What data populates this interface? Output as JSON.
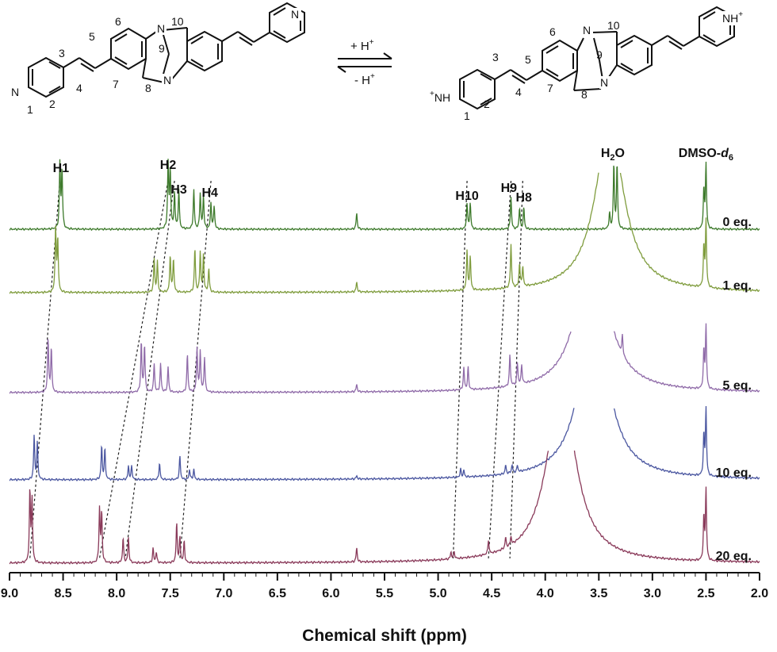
{
  "scheme": {
    "left_molecule": {
      "atom_numbers": [
        "1",
        "2",
        "3",
        "4",
        "5",
        "6",
        "7",
        "8",
        "9",
        "10"
      ],
      "n_label": "N"
    },
    "right_molecule": {
      "atom_numbers": [
        "1",
        "2",
        "3",
        "4",
        "5",
        "6",
        "7",
        "8",
        "9",
        "10"
      ],
      "n_label": "N",
      "nh_plus_label": "NH",
      "plus_sign": "+"
    },
    "forward_label": "+ H",
    "reverse_label": "- H",
    "superscript": "+"
  },
  "chart_data": {
    "type": "stacked-spectra",
    "xlabel": "Chemical shift (ppm)",
    "xlim": [
      9.0,
      2.0
    ],
    "x_reversed": true,
    "x_ticks": [
      "9.0",
      "8.5",
      "8.0",
      "7.5",
      "7.0",
      "6.5",
      "6.0",
      "5.5",
      "5.0",
      "4.5",
      "4.0",
      "3.5",
      "3.0",
      "2.5",
      "2.0"
    ],
    "top_labels": [
      {
        "text": "H1",
        "ppm": 8.52
      },
      {
        "text": "H2",
        "ppm": 7.52
      },
      {
        "text": "H3",
        "ppm": 7.42
      },
      {
        "text": "H4",
        "ppm": 7.13
      },
      {
        "text": "H10",
        "ppm": 4.73
      },
      {
        "text": "H9",
        "ppm": 4.34
      },
      {
        "text": "H8",
        "ppm": 4.2
      },
      {
        "text": "H2O",
        "ppm": 3.37
      },
      {
        "text": "DMSO-d6",
        "ppm": 2.5
      }
    ],
    "water_label": {
      "main": "H",
      "sub": "2",
      "tail": "O"
    },
    "solvent_label": {
      "main": "DMSO-",
      "italic": "d",
      "sub": "6"
    },
    "series": [
      {
        "name": "0 eq.",
        "color": "#3d7a2b",
        "peaks": [
          [
            8.53,
            1.0
          ],
          [
            8.51,
            0.9
          ],
          [
            7.52,
            1.0
          ],
          [
            7.5,
            0.9
          ],
          [
            7.46,
            0.55
          ],
          [
            7.42,
            0.6
          ],
          [
            7.28,
            0.6
          ],
          [
            7.22,
            0.55
          ],
          [
            7.19,
            0.5
          ],
          [
            7.12,
            0.4
          ],
          [
            7.09,
            0.35
          ],
          [
            5.76,
            0.25
          ],
          [
            4.73,
            0.4
          ],
          [
            4.7,
            0.4
          ],
          [
            4.32,
            0.5
          ],
          [
            4.24,
            0.33
          ],
          [
            4.2,
            0.33
          ],
          [
            3.36,
            1.0
          ],
          [
            3.33,
            1.0
          ],
          [
            3.4,
            0.25
          ],
          [
            2.5,
            1.0
          ],
          [
            2.52,
            0.6
          ]
        ]
      },
      {
        "name": "1 eq.",
        "color": "#7f9c3d",
        "peaks": [
          [
            8.57,
            0.95
          ],
          [
            8.55,
            0.8
          ],
          [
            7.65,
            0.5
          ],
          [
            7.62,
            0.45
          ],
          [
            7.5,
            0.55
          ],
          [
            7.47,
            0.5
          ],
          [
            7.27,
            0.65
          ],
          [
            7.22,
            0.6
          ],
          [
            7.19,
            0.55
          ],
          [
            7.14,
            0.35
          ],
          [
            5.76,
            0.15
          ],
          [
            4.73,
            0.6
          ],
          [
            4.7,
            0.5
          ],
          [
            4.32,
            0.65
          ],
          [
            4.24,
            0.35
          ],
          [
            4.21,
            0.3
          ],
          [
            2.5,
            1.0
          ],
          [
            2.52,
            0.6
          ]
        ]
      },
      {
        "name": "5 eq.",
        "color": "#8f6aa8",
        "peaks": [
          [
            8.64,
            0.85
          ],
          [
            8.61,
            0.7
          ],
          [
            7.77,
            0.8
          ],
          [
            7.74,
            0.75
          ],
          [
            7.65,
            0.45
          ],
          [
            7.59,
            0.45
          ],
          [
            7.52,
            0.4
          ],
          [
            7.34,
            0.6
          ],
          [
            7.25,
            0.7
          ],
          [
            7.22,
            0.65
          ],
          [
            7.18,
            0.55
          ],
          [
            5.76,
            0.12
          ],
          [
            4.76,
            0.35
          ],
          [
            4.72,
            0.35
          ],
          [
            4.33,
            0.5
          ],
          [
            4.26,
            0.35
          ],
          [
            4.22,
            0.3
          ],
          [
            3.28,
            0.3
          ],
          [
            2.5,
            1.0
          ],
          [
            2.52,
            0.6
          ]
        ]
      },
      {
        "name": "10 eq.",
        "color": "#4a56a0",
        "peaks": [
          [
            8.77,
            0.65
          ],
          [
            8.74,
            0.55
          ],
          [
            8.14,
            0.5
          ],
          [
            8.11,
            0.45
          ],
          [
            7.89,
            0.2
          ],
          [
            7.86,
            0.2
          ],
          [
            7.6,
            0.25
          ],
          [
            7.41,
            0.35
          ],
          [
            7.32,
            0.15
          ],
          [
            7.28,
            0.15
          ],
          [
            5.76,
            0.05
          ],
          [
            4.79,
            0.12
          ],
          [
            4.76,
            0.1
          ],
          [
            4.37,
            0.13
          ],
          [
            4.31,
            0.12
          ],
          [
            4.26,
            0.1
          ],
          [
            2.5,
            1.0
          ],
          [
            2.52,
            0.6
          ]
        ]
      },
      {
        "name": "20 eq.",
        "color": "#8a3a5a",
        "peaks": [
          [
            8.81,
            1.0
          ],
          [
            8.79,
            0.9
          ],
          [
            8.16,
            0.75
          ],
          [
            8.14,
            0.7
          ],
          [
            7.94,
            0.35
          ],
          [
            7.89,
            0.35
          ],
          [
            7.66,
            0.2
          ],
          [
            7.63,
            0.15
          ],
          [
            7.44,
            0.55
          ],
          [
            7.41,
            0.35
          ],
          [
            7.37,
            0.3
          ],
          [
            5.76,
            0.2
          ],
          [
            4.88,
            0.1
          ],
          [
            4.85,
            0.1
          ],
          [
            4.53,
            0.2
          ],
          [
            4.37,
            0.15
          ],
          [
            4.32,
            0.12
          ],
          [
            2.5,
            1.0
          ],
          [
            2.52,
            0.6
          ]
        ]
      }
    ],
    "water_regions": [
      {
        "series": "1 eq.",
        "left_ppm": 3.5,
        "right_ppm": 3.3,
        "clip": true
      },
      {
        "series": "5 eq.",
        "left_ppm": 3.76,
        "right_ppm": 3.36,
        "clip": true
      },
      {
        "series": "10 eq.",
        "left_ppm": 3.73,
        "right_ppm": 3.36,
        "clip": true
      },
      {
        "series": "20 eq.",
        "left_ppm": 3.97,
        "right_ppm": 3.73,
        "clip": true
      }
    ],
    "tracking_lines": [
      {
        "label": "H1",
        "from": 8.53,
        "to": 8.81
      },
      {
        "label": "H2",
        "from": 7.52,
        "to": 8.16
      },
      {
        "label": "H3",
        "from": 7.46,
        "to": 7.92
      },
      {
        "label": "H4",
        "from": 7.12,
        "to": 7.41
      },
      {
        "label": "H10",
        "from": 4.73,
        "to": 4.86
      },
      {
        "label": "H9",
        "from": 4.32,
        "to": 4.53
      },
      {
        "label": "H8",
        "from": 4.21,
        "to": 4.33
      }
    ]
  }
}
